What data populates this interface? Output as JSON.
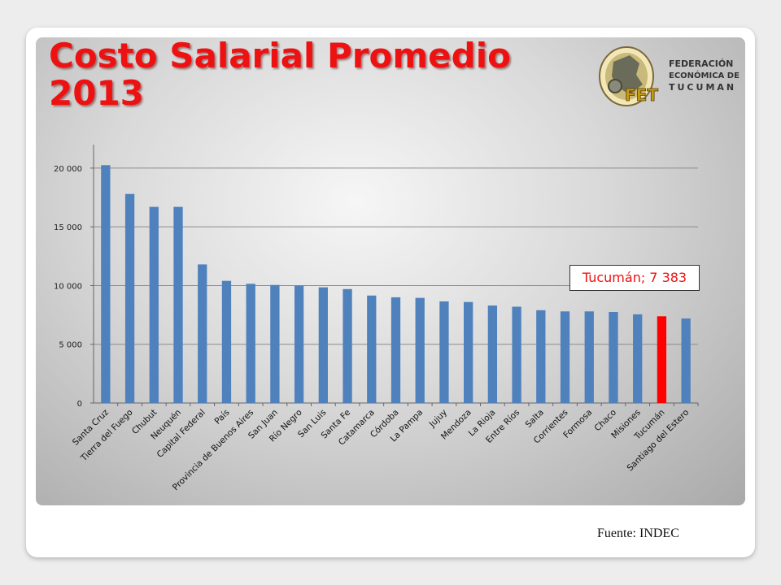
{
  "slide": {
    "title_line1": "Costo Salarial Promedio",
    "title_line2": "2013",
    "source": "Fuente: INDEC",
    "logo": {
      "initials": "FET",
      "line1": "FEDERACIÓN",
      "line2": "ECONÓMICA DE",
      "line3": "TUCUMAN"
    }
  },
  "chart_data": {
    "type": "bar",
    "categories": [
      "Santa Cruz",
      "Tierra del Fuego",
      "Chubut",
      "Neuquén",
      "Capital Federal",
      "País",
      "Provincia de Buenos Aires",
      "San Juan",
      "Río Negro",
      "San Luis",
      "Santa Fe",
      "Catamarca",
      "Córdoba",
      "La Pampa",
      "Jujuy",
      "Mendoza",
      "La Rioja",
      "Entre Ríos",
      "Salta",
      "Corrientes",
      "Formosa",
      "Chaco",
      "Misiones",
      "Tucumán",
      "Santiago del Estero"
    ],
    "values": [
      20250,
      17800,
      16700,
      16700,
      11800,
      10400,
      10150,
      10050,
      10000,
      9850,
      9700,
      9150,
      9000,
      8950,
      8650,
      8600,
      8300,
      8200,
      7900,
      7800,
      7800,
      7750,
      7550,
      7383,
      7200
    ],
    "highlight_index": 23,
    "highlight_color": "#ff0000",
    "bar_color": "#4f81bd",
    "ylim": [
      0,
      22000
    ],
    "yticks": [
      0,
      5000,
      10000,
      15000,
      20000
    ],
    "ytick_labels": [
      "0",
      "5 000",
      "10 000",
      "15 000",
      "20 000"
    ],
    "grid": true,
    "annotation": "Tucumán; 7 383"
  }
}
